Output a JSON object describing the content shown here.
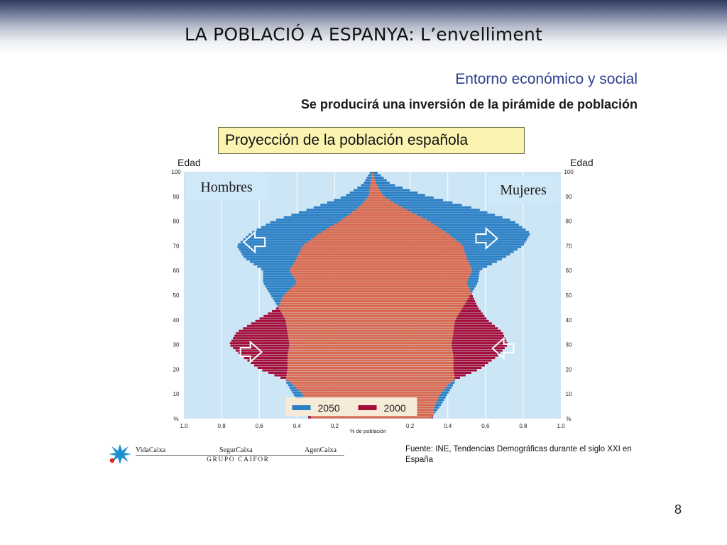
{
  "slide": {
    "title": "LA POBLACIÓ A ESPANYA: L’envelliment",
    "page_number": "8"
  },
  "header": {
    "subtitle1": "Entorno económico y social",
    "subtitle2": "Se producirá una inversión de la pirámide de población"
  },
  "footer": {
    "brands": [
      "VidaCaixa",
      "SegurCaixa",
      "AgenCaixa"
    ],
    "group": "GRUPO CAIFOR",
    "source": "Fuente: INE, Tendencias Demográficas durante el siglo XXI en España"
  },
  "chart_data": {
    "type": "population-pyramid",
    "title": "Proyección de la población española",
    "left_ylabel": "Edad",
    "right_ylabel": "Edad",
    "xlabel": "% de población",
    "x_ticks_left": [
      "1.0",
      "0.8",
      "0.6",
      "0.4",
      "0.2"
    ],
    "x_ticks_right": [
      "0.2",
      "0.4",
      "0.6",
      "0.8",
      "1.0"
    ],
    "y_ticks": [
      "%",
      "10",
      "20",
      "30",
      "40",
      "50",
      "60",
      "70",
      "80",
      "90",
      "100"
    ],
    "xlim": [
      -1.0,
      1.0
    ],
    "ylim": [
      0,
      100
    ],
    "side_labels": [
      "Hombres",
      "Mujeres"
    ],
    "legend": [
      {
        "name": "2050",
        "color": "#2b7fc4"
      },
      {
        "name": "2000",
        "color": "#a50d3a"
      }
    ],
    "colors": {
      "background": "#cde6f5",
      "series_2050": "#2b7fc4",
      "series_2000": "#a50d3a",
      "overlap": "#d9694f"
    },
    "series": [
      {
        "name": "2000",
        "ages": [
          0,
          5,
          10,
          15,
          20,
          25,
          30,
          35,
          40,
          45,
          50,
          55,
          60,
          65,
          70,
          75,
          80,
          85,
          90,
          95,
          100
        ],
        "hombres": [
          0.34,
          0.35,
          0.37,
          0.44,
          0.6,
          0.69,
          0.76,
          0.72,
          0.61,
          0.5,
          0.47,
          0.4,
          0.44,
          0.4,
          0.37,
          0.28,
          0.17,
          0.08,
          0.02,
          0.01,
          0.0
        ],
        "mujeres": [
          0.32,
          0.33,
          0.36,
          0.42,
          0.57,
          0.66,
          0.72,
          0.69,
          0.61,
          0.56,
          0.53,
          0.5,
          0.53,
          0.5,
          0.48,
          0.4,
          0.3,
          0.17,
          0.06,
          0.02,
          0.0
        ]
      },
      {
        "name": "2050",
        "ages": [
          0,
          5,
          10,
          15,
          20,
          25,
          30,
          35,
          40,
          45,
          50,
          55,
          60,
          65,
          70,
          75,
          80,
          85,
          90,
          95,
          100
        ],
        "hombres": [
          0.32,
          0.38,
          0.42,
          0.46,
          0.45,
          0.45,
          0.44,
          0.45,
          0.46,
          0.5,
          0.54,
          0.58,
          0.58,
          0.68,
          0.72,
          0.65,
          0.53,
          0.33,
          0.15,
          0.05,
          0.01
        ],
        "mujeres": [
          0.31,
          0.36,
          0.4,
          0.44,
          0.43,
          0.43,
          0.42,
          0.43,
          0.44,
          0.48,
          0.52,
          0.56,
          0.57,
          0.7,
          0.8,
          0.84,
          0.75,
          0.55,
          0.3,
          0.1,
          0.02
        ]
      }
    ],
    "annotations": [
      {
        "side": "hombres",
        "period": "older",
        "arrow": "left"
      },
      {
        "side": "mujeres",
        "period": "older",
        "arrow": "right"
      },
      {
        "side": "hombres",
        "period": "younger",
        "arrow": "right"
      },
      {
        "side": "mujeres",
        "period": "younger",
        "arrow": "left"
      }
    ]
  }
}
